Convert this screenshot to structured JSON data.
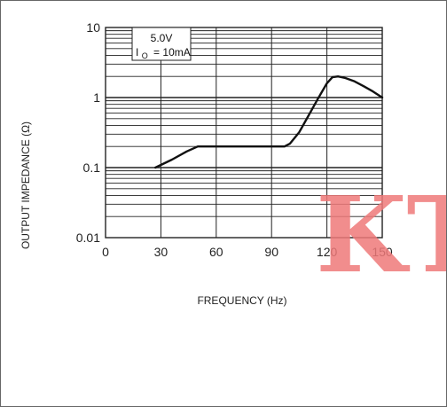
{
  "chart_data": {
    "type": "line",
    "title": "",
    "xlabel": "FREQUENCY (Hz)",
    "ylabel": "OUTPUT IMPEDANCE (Ω)",
    "x_scale": "linear",
    "y_scale": "log",
    "xlim": [
      0,
      150
    ],
    "ylim": [
      0.01,
      10
    ],
    "x_ticks": [
      0,
      30,
      60,
      90,
      120,
      150
    ],
    "x_tick_labels": [
      "0",
      "30",
      "60",
      "90",
      "120",
      "150"
    ],
    "y_ticks": [
      0.01,
      0.1,
      1,
      10
    ],
    "y_tick_labels": [
      "0.01",
      "0.1",
      "1",
      "10"
    ],
    "grid": true,
    "annotation": {
      "voltage": "5.0V",
      "current_symbol": "I",
      "current_subscript": "O",
      "current_value": "= 10mA"
    },
    "series": [
      {
        "x": [
          27,
          36,
          44,
          50,
          55,
          60,
          70,
          80,
          90,
          97,
          100,
          105,
          110,
          115,
          120,
          123,
          126,
          130,
          135,
          140,
          145,
          150
        ],
        "y": [
          0.1,
          0.13,
          0.17,
          0.2,
          0.2,
          0.2,
          0.2,
          0.2,
          0.2,
          0.2,
          0.22,
          0.32,
          0.55,
          0.95,
          1.6,
          1.95,
          2.0,
          1.9,
          1.7,
          1.45,
          1.22,
          1.0
        ]
      }
    ],
    "line_color": "#111111",
    "grid_color": "#222222"
  },
  "watermark": {
    "text": "KT",
    "color": "#ef7a7a"
  }
}
